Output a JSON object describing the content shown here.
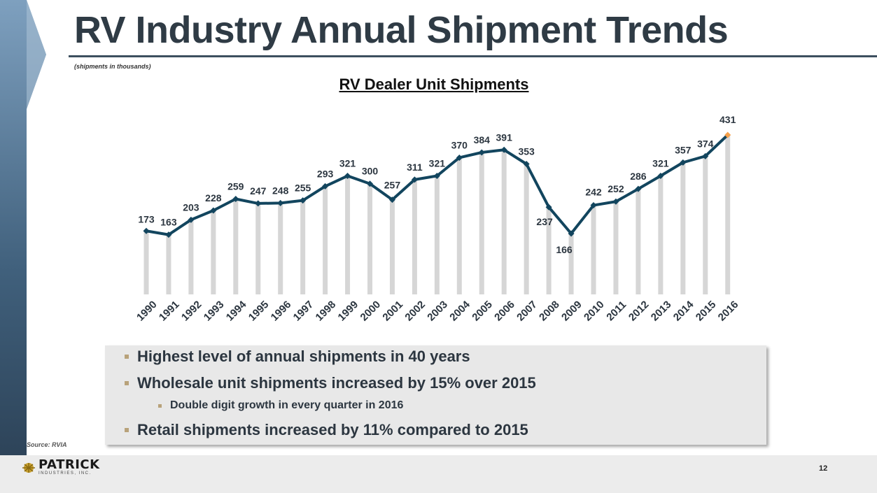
{
  "slide": {
    "title": "RV Industry Annual Shipment Trends",
    "subtitle": "(shipments in thousands)",
    "source": "Source: RVIA",
    "page_number": "12",
    "logo": {
      "name": "PATRICK",
      "sub": "INDUSTRIES, INC."
    }
  },
  "bullets": [
    {
      "text": "Highest level of annual shipments in 40 years",
      "level": 1
    },
    {
      "text": "Wholesale unit shipments increased by 15% over 2015",
      "level": 1
    },
    {
      "text": "Double digit growth in every quarter in 2016",
      "level": 2
    },
    {
      "text": "Retail shipments increased by 11% compared to 2015",
      "level": 1
    }
  ],
  "colors": {
    "line": "#12455e",
    "bar": "#d6d6d6",
    "highlight_marker": "#f5a04a",
    "text": "#2c3640"
  },
  "chart_data": {
    "type": "line",
    "title": "RV Dealer Unit Shipments",
    "xlabel": "",
    "ylabel": "",
    "categories": [
      "1990",
      "1991",
      "1992",
      "1993",
      "1994",
      "1995",
      "1996",
      "1997",
      "1998",
      "1999",
      "2000",
      "2001",
      "2002",
      "2003",
      "2004",
      "2005",
      "2006",
      "2007",
      "2008",
      "2009",
      "2010",
      "2011",
      "2012",
      "2013",
      "2014",
      "2015",
      "2016"
    ],
    "series": [
      {
        "name": "RV Dealer Unit Shipments",
        "values": [
          173,
          163,
          203,
          228,
          259,
          247,
          248,
          255,
          293,
          321,
          300,
          257,
          311,
          321,
          370,
          384,
          391,
          353,
          237,
          166,
          242,
          252,
          286,
          321,
          357,
          374,
          431
        ]
      }
    ],
    "highlight_category": "2016",
    "ylim": [
      0,
      431
    ],
    "grid": false,
    "legend": "none"
  }
}
